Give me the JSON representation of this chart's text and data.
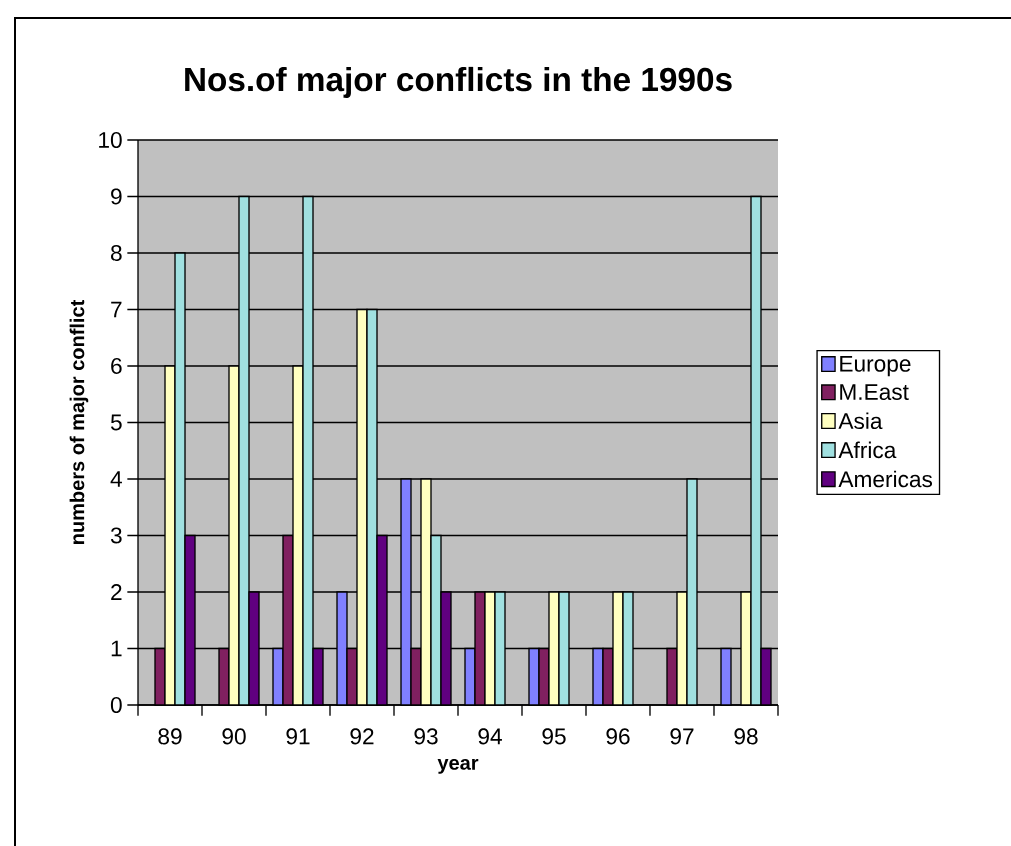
{
  "chart_data": {
    "type": "bar",
    "title": "Nos.of major conflicts in the 1990s",
    "xlabel": "year",
    "ylabel": "numbers of major conflict",
    "categories": [
      "89",
      "90",
      "91",
      "92",
      "93",
      "94",
      "95",
      "96",
      "97",
      "98"
    ],
    "series": [
      {
        "name": "Europe",
        "color": "#8080ff",
        "values": [
          0,
          0,
          1,
          2,
          4,
          1,
          1,
          1,
          0,
          1
        ]
      },
      {
        "name": "M.East",
        "color": "#802060",
        "values": [
          1,
          1,
          3,
          1,
          1,
          2,
          1,
          1,
          1,
          0
        ]
      },
      {
        "name": "Asia",
        "color": "#ffffc0",
        "values": [
          6,
          6,
          6,
          7,
          4,
          2,
          2,
          2,
          2,
          2
        ]
      },
      {
        "name": "Africa",
        "color": "#a0e0e0",
        "values": [
          8,
          9,
          9,
          7,
          3,
          2,
          2,
          2,
          4,
          9
        ]
      },
      {
        "name": "Americas",
        "color": "#600080",
        "values": [
          3,
          2,
          1,
          3,
          2,
          0,
          0,
          0,
          0,
          1
        ]
      }
    ],
    "ylim": [
      0,
      10
    ],
    "yticks": [
      0,
      1,
      2,
      3,
      4,
      5,
      6,
      7,
      8,
      9,
      10
    ],
    "grid": "y",
    "legend": "right"
  }
}
